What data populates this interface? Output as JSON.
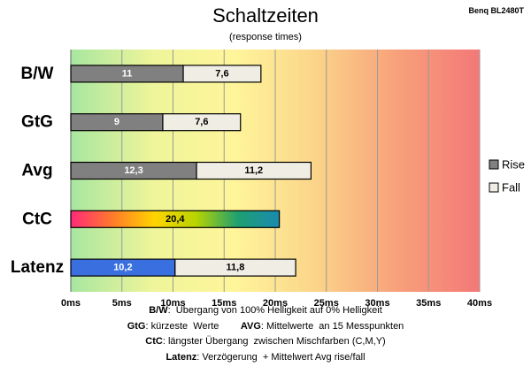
{
  "header": {
    "title": "Schaltzeiten",
    "subtitle": "(response times)",
    "brand": "Benq BL2480T"
  },
  "colors": {
    "rise": "#808080",
    "fall": "#f0ede4",
    "latenz_rise": "#3a6fe0",
    "grid": "#9a9a9a",
    "bg_gradient": [
      "#a8e6a0",
      "#eef59a",
      "#fff59a",
      "#fbd48a",
      "#f7a07a",
      "#f47878"
    ],
    "ctc_gradient": [
      "#ff2a7a",
      "#ff7a2a",
      "#ffd400",
      "#b8d400",
      "#1ea070",
      "#1a8ab0"
    ]
  },
  "chart_data": {
    "type": "bar",
    "orientation": "horizontal",
    "stacked": true,
    "categories": [
      "B/W",
      "GtG",
      "Avg",
      "CtC",
      "Latenz"
    ],
    "series": [
      {
        "name": "Rise",
        "values": [
          11,
          9,
          12.3,
          20.4,
          10.2
        ],
        "labels": [
          "11",
          "9",
          "12,3",
          "20,4",
          "10,2"
        ]
      },
      {
        "name": "Fall",
        "values": [
          7.6,
          7.6,
          11.2,
          0,
          11.8
        ],
        "labels": [
          "7,6",
          "7,6",
          "11,2",
          "",
          "11,8"
        ]
      }
    ],
    "xlim": [
      0,
      40
    ],
    "xticks": [
      "0ms",
      "5ms",
      "10ms",
      "15ms",
      "20ms",
      "25ms",
      "30ms",
      "35ms",
      "40ms"
    ],
    "grid": true,
    "legend_position": "right"
  },
  "notes": [
    {
      "key": "B/W",
      "text": ":  Übergang von 100% Helligkeit auf 0% Helligkeit"
    },
    {
      "key": "GtG",
      "text": ": kürzeste  Werte",
      "key2": "AVG",
      "text2": ": Mittelwerte  an 15 Messpunkten"
    },
    {
      "key": "CtC",
      "text": ": längster Übergang  zwischen Mischfarben (C,M,Y)"
    },
    {
      "key": "Latenz",
      "text": ": Verzögerung  + Mittelwert Avg rise/fall"
    }
  ]
}
